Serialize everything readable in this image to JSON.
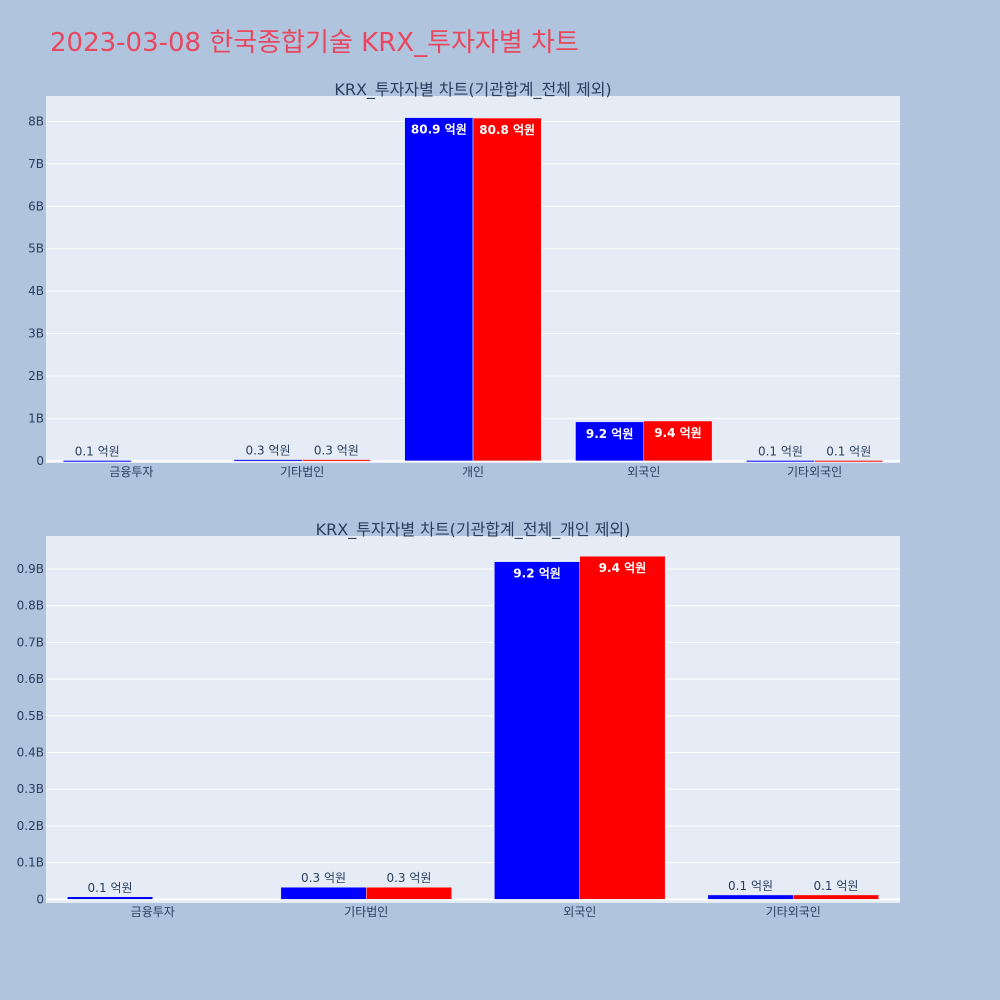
{
  "page": {
    "title": "2023-03-08 한국종합기술 KRX_투자자별 차트",
    "title_color": "#e8475f",
    "background": "#b0c4de",
    "plot_background": "#e5ecf6"
  },
  "chart_data": [
    {
      "type": "bar",
      "title": "KRX_투자자별 차트(기관합계_전체 제외)",
      "categories": [
        "금융투자",
        "기타법인",
        "개인",
        "외국인",
        "기타외국인"
      ],
      "series": [
        {
          "color": "#0000ff",
          "values": [
            10000000,
            30000000,
            8090000000,
            920000000,
            10000000
          ],
          "labels": [
            "0.1 억원",
            "0.3 억원",
            "80.9 억원",
            "9.2 억원",
            "0.1 억원"
          ]
        },
        {
          "color": "#ff0000",
          "values": [
            0,
            30000000,
            8080000000,
            940000000,
            10000000
          ],
          "labels": [
            "",
            "0.3 억원",
            "80.8 억원",
            "9.4 억원",
            "0.1 억원"
          ]
        }
      ],
      "ylim": [
        -50000000,
        8600000000
      ],
      "yticks": [
        0,
        1000000000,
        2000000000,
        3000000000,
        4000000000,
        5000000000,
        6000000000,
        7000000000,
        8000000000
      ],
      "yticklabels": [
        "0",
        "1B",
        "2B",
        "3B",
        "4B",
        "5B",
        "6B",
        "7B",
        "8B"
      ],
      "grid": true,
      "legend": "none"
    },
    {
      "type": "bar",
      "title": "KRX_투자자별 차트(기관합계_전체_개인 제외)",
      "categories": [
        "금융투자",
        "기타법인",
        "외국인",
        "기타외국인"
      ],
      "series": [
        {
          "color": "#0000ff",
          "values": [
            7000000,
            33000000,
            920000000,
            12000000
          ],
          "labels": [
            "0.1 억원",
            "0.3 억원",
            "9.2 억원",
            "0.1 억원"
          ]
        },
        {
          "color": "#ff0000",
          "values": [
            0,
            33000000,
            935000000,
            12000000
          ],
          "labels": [
            "",
            "0.3 억원",
            "9.4 억원",
            "0.1 억원"
          ]
        }
      ],
      "ylim": [
        -10000000,
        990000000
      ],
      "yticks": [
        0,
        100000000,
        200000000,
        300000000,
        400000000,
        500000000,
        600000000,
        700000000,
        800000000,
        900000000
      ],
      "yticklabels": [
        "0",
        "0.1B",
        "0.2B",
        "0.3B",
        "0.4B",
        "0.5B",
        "0.6B",
        "0.7B",
        "0.8B",
        "0.9B"
      ],
      "grid": true,
      "legend": "none"
    }
  ]
}
